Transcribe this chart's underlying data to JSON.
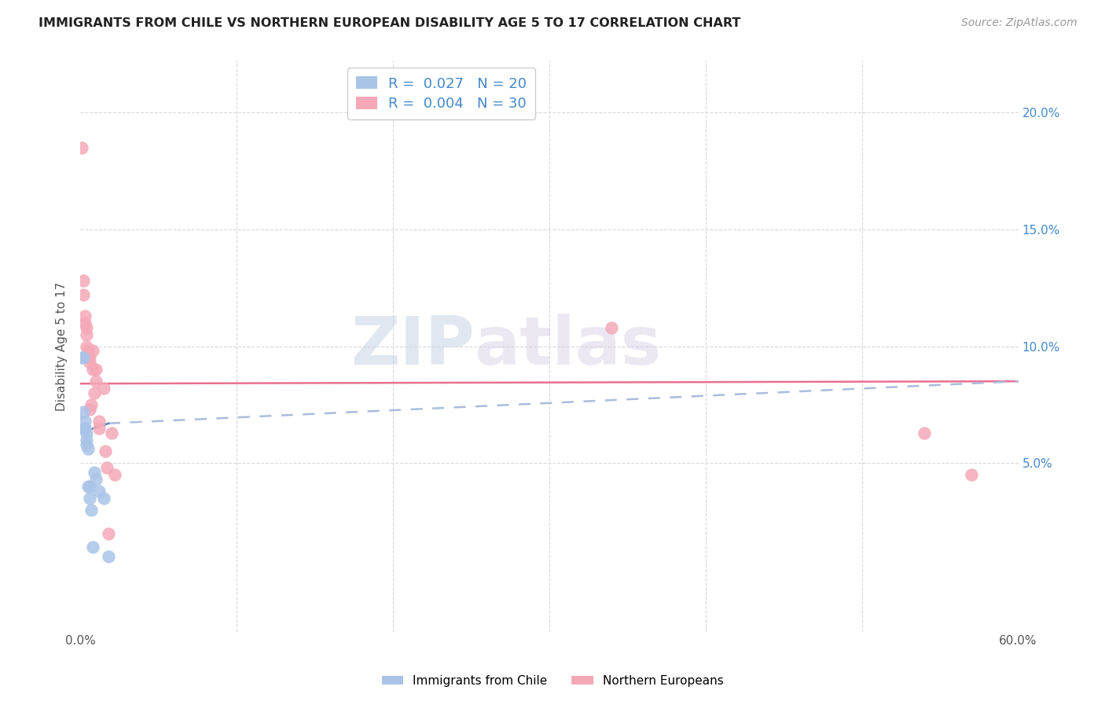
{
  "title": "IMMIGRANTS FROM CHILE VS NORTHERN EUROPEAN DISABILITY AGE 5 TO 17 CORRELATION CHART",
  "source": "Source: ZipAtlas.com",
  "ylabel": "Disability Age 5 to 17",
  "xlim": [
    0.0,
    0.6
  ],
  "ylim": [
    -0.022,
    0.222
  ],
  "chile_color": "#aac4e8",
  "northern_color": "#f4a8b8",
  "chile_R": 0.027,
  "chile_N": 20,
  "northern_R": 0.004,
  "northern_N": 30,
  "watermark_part1": "ZIP",
  "watermark_part2": "atlas",
  "grid_color": "#d8d8d8",
  "line_color_blue": "#aabcdc",
  "line_color_pink": "#e87090",
  "bg_color": "#ffffff",
  "chile_points_x": [
    0.001,
    0.002,
    0.002,
    0.003,
    0.003,
    0.003,
    0.004,
    0.004,
    0.004,
    0.005,
    0.005,
    0.006,
    0.006,
    0.007,
    0.008,
    0.009,
    0.01,
    0.012,
    0.015,
    0.018
  ],
  "chile_points_y": [
    0.095,
    0.095,
    0.072,
    0.068,
    0.065,
    0.065,
    0.063,
    0.06,
    0.058,
    0.056,
    0.04,
    0.04,
    0.035,
    0.03,
    0.014,
    0.046,
    0.043,
    0.038,
    0.035,
    0.01
  ],
  "northern_points_x": [
    0.001,
    0.002,
    0.002,
    0.003,
    0.003,
    0.004,
    0.004,
    0.004,
    0.005,
    0.005,
    0.006,
    0.006,
    0.006,
    0.007,
    0.008,
    0.008,
    0.009,
    0.01,
    0.01,
    0.012,
    0.012,
    0.015,
    0.016,
    0.017,
    0.018,
    0.02,
    0.022,
    0.34,
    0.54,
    0.57
  ],
  "northern_points_y": [
    0.185,
    0.128,
    0.122,
    0.113,
    0.11,
    0.108,
    0.105,
    0.1,
    0.098,
    0.096,
    0.095,
    0.093,
    0.073,
    0.075,
    0.098,
    0.09,
    0.08,
    0.09,
    0.085,
    0.065,
    0.068,
    0.082,
    0.055,
    0.048,
    0.02,
    0.063,
    0.045,
    0.108,
    0.063,
    0.045
  ],
  "pink_line_y_start": 0.084,
  "pink_line_y_end": 0.085,
  "blue_line_solid_x_start": 0.0,
  "blue_line_solid_x_end": 0.018,
  "blue_line_solid_y_start": 0.063,
  "blue_line_solid_y_end": 0.067,
  "blue_line_dash_x_start": 0.018,
  "blue_line_dash_x_end": 0.6,
  "blue_line_dash_y_start": 0.067,
  "blue_line_dash_y_end": 0.085
}
